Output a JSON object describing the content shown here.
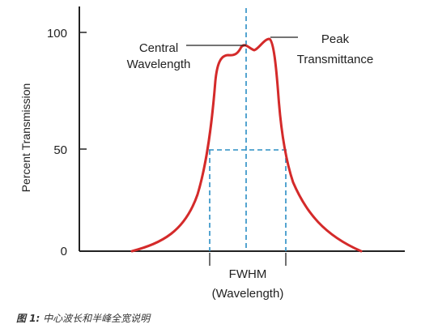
{
  "figure": {
    "y_axis_title": "Percent Transmission",
    "y_ticks": [
      "100",
      "50",
      "0"
    ],
    "annotations": {
      "central_line1": "Central",
      "central_line2": "Wavelength",
      "peak_line1": "Peak",
      "peak_line2": "Transmittance",
      "fwhm_line1": "FWHM",
      "fwhm_line2": "(Wavelength)"
    },
    "colors": {
      "curve": "#d42a2a",
      "dashed": "#2a8dc4",
      "axis": "#222222"
    }
  },
  "caption": {
    "label": "图 1:",
    "text": "中心波长和半峰全宽说明"
  }
}
